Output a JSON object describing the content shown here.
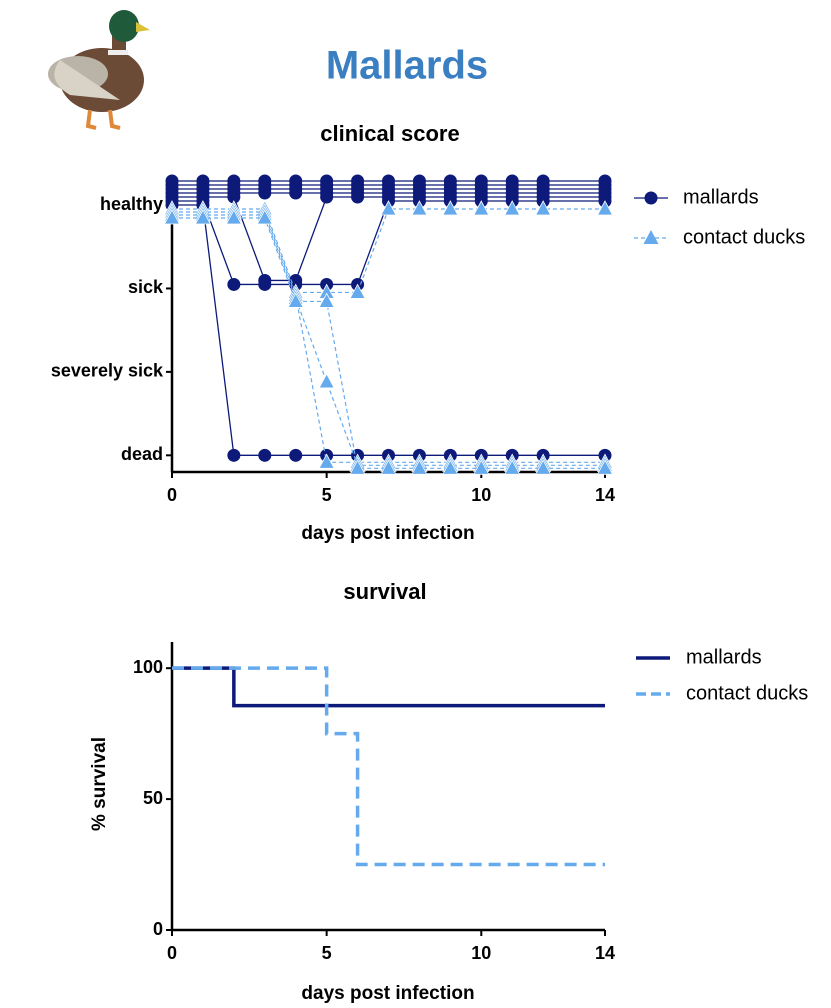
{
  "title": "Mallards",
  "chart_data": [
    {
      "type": "dotline",
      "title": "clinical score",
      "x_label": "days post infection",
      "x": [
        0,
        1,
        2,
        3,
        4,
        5,
        6,
        7,
        8,
        9,
        10,
        11,
        12,
        14
      ],
      "xlim": [
        0,
        14
      ],
      "xticks": [
        0,
        5,
        10,
        14
      ],
      "ylim": [
        -0.2,
        3.3
      ],
      "yticks": [
        {
          "value": 0,
          "label": "dead"
        },
        {
          "value": 1,
          "label": "severely sick"
        },
        {
          "value": 2,
          "label": "sick"
        },
        {
          "value": 3,
          "label": "healthy"
        }
      ],
      "series": [
        {
          "name": "mallards",
          "color": "#0d1a7a",
          "marker": "circle",
          "values": [
            [
              3,
              3,
              0,
              0,
              0,
              0,
              0,
              0,
              0,
              0,
              0,
              0,
              0,
              0
            ],
            [
              3,
              3,
              2,
              2,
              2,
              2,
              2,
              3,
              3,
              3,
              3,
              3,
              3,
              3
            ],
            [
              3,
              3,
              3,
              2,
              2,
              3,
              3,
              3,
              3,
              3,
              3,
              3,
              3,
              3
            ],
            [
              3,
              3,
              3,
              3,
              3,
              3,
              3,
              3,
              3,
              3,
              3,
              3,
              3,
              3
            ],
            [
              3,
              3,
              3,
              3,
              3,
              3,
              3,
              3,
              3,
              3,
              3,
              3,
              3,
              3
            ],
            [
              3,
              3,
              3,
              3,
              3,
              3,
              3,
              3,
              3,
              3,
              3,
              3,
              3,
              3
            ],
            [
              3,
              3,
              3,
              3,
              3,
              3,
              3,
              3,
              3,
              3,
              3,
              3,
              3,
              3
            ]
          ]
        },
        {
          "name": "contact ducks",
          "color": "#66aaee",
          "marker": "triangle",
          "values": [
            [
              3,
              3,
              3,
              3,
              2,
              2,
              2,
              3,
              3,
              3,
              3,
              3,
              3,
              3
            ],
            [
              3,
              3,
              3,
              3,
              2,
              0,
              0,
              0,
              0,
              0,
              0,
              0,
              0,
              0
            ],
            [
              3,
              3,
              3,
              3,
              2,
              1,
              0,
              0,
              0,
              0,
              0,
              0,
              0,
              0
            ],
            [
              3,
              3,
              3,
              3,
              2,
              2,
              0,
              0,
              0,
              0,
              0,
              0,
              0,
              0
            ]
          ]
        }
      ]
    },
    {
      "type": "step",
      "title": "survival",
      "x_label": "days post infection",
      "y_label": "% survival",
      "xlim": [
        0,
        14
      ],
      "xticks": [
        0,
        5,
        10,
        14
      ],
      "ylim": [
        0,
        110
      ],
      "yticks": [
        0,
        50,
        100
      ],
      "series": [
        {
          "name": "mallards",
          "color": "#0d1a7a",
          "dash": false,
          "x": [
            0,
            2,
            14
          ],
          "values": [
            100,
            85.7,
            85.7
          ]
        },
        {
          "name": "contact ducks",
          "color": "#66aaee",
          "dash": true,
          "x": [
            0,
            5,
            6,
            14
          ],
          "values": [
            100,
            75,
            25,
            25
          ]
        }
      ]
    }
  ]
}
